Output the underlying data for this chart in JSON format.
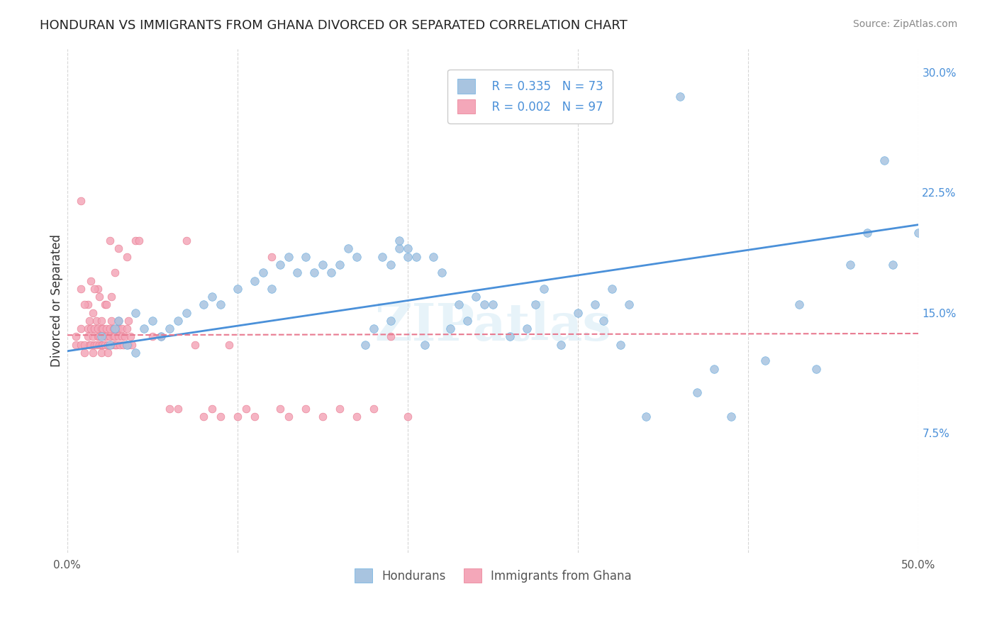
{
  "title": "HONDURAN VS IMMIGRANTS FROM GHANA DIVORCED OR SEPARATED CORRELATION CHART",
  "source": "Source: ZipAtlas.com",
  "ylabel": "Divorced or Separated",
  "xlim": [
    0.0,
    0.5
  ],
  "ylim": [
    0.0,
    0.315
  ],
  "xtick_positions": [
    0.0,
    0.1,
    0.2,
    0.3,
    0.4,
    0.5
  ],
  "xtick_labels": [
    "0.0%",
    "",
    "",
    "",
    "",
    "50.0%"
  ],
  "ytick_labels_right": [
    "7.5%",
    "15.0%",
    "22.5%",
    "30.0%"
  ],
  "ytick_vals_right": [
    0.075,
    0.15,
    0.225,
    0.3
  ],
  "grid_color": "#cccccc",
  "background_color": "#ffffff",
  "watermark": "ZIPatlas",
  "honduran_color": "#a8c4e0",
  "ghana_color": "#f4a7b9",
  "honduran_edge_color": "#6aaee0",
  "ghana_edge_color": "#e87a90",
  "honduran_line_color": "#4a90d9",
  "ghana_line_color": "#e87a90",
  "legend_R1": "R = 0.335",
  "legend_N1": "N = 73",
  "legend_R2": "R = 0.002",
  "legend_N2": "N = 97",
  "legend_text_color": "#4a90d9",
  "legend_label1": "Hondurans",
  "legend_label2": "Immigrants from Ghana",
  "bottom_legend_color": "#555555",
  "title_color": "#222222",
  "source_color": "#888888",
  "ylabel_color": "#333333",
  "right_ytick_color": "#4a90d9",
  "honduran_scatter": [
    [
      0.02,
      0.135
    ],
    [
      0.025,
      0.13
    ],
    [
      0.028,
      0.14
    ],
    [
      0.03,
      0.145
    ],
    [
      0.035,
      0.13
    ],
    [
      0.04,
      0.125
    ],
    [
      0.04,
      0.15
    ],
    [
      0.045,
      0.14
    ],
    [
      0.05,
      0.145
    ],
    [
      0.055,
      0.135
    ],
    [
      0.06,
      0.14
    ],
    [
      0.065,
      0.145
    ],
    [
      0.07,
      0.15
    ],
    [
      0.08,
      0.155
    ],
    [
      0.085,
      0.16
    ],
    [
      0.09,
      0.155
    ],
    [
      0.1,
      0.165
    ],
    [
      0.11,
      0.17
    ],
    [
      0.115,
      0.175
    ],
    [
      0.12,
      0.165
    ],
    [
      0.125,
      0.18
    ],
    [
      0.13,
      0.185
    ],
    [
      0.135,
      0.175
    ],
    [
      0.14,
      0.185
    ],
    [
      0.145,
      0.175
    ],
    [
      0.15,
      0.18
    ],
    [
      0.155,
      0.175
    ],
    [
      0.16,
      0.18
    ],
    [
      0.165,
      0.19
    ],
    [
      0.17,
      0.185
    ],
    [
      0.175,
      0.13
    ],
    [
      0.18,
      0.14
    ],
    [
      0.185,
      0.185
    ],
    [
      0.19,
      0.18
    ],
    [
      0.19,
      0.145
    ],
    [
      0.195,
      0.19
    ],
    [
      0.195,
      0.195
    ],
    [
      0.2,
      0.19
    ],
    [
      0.2,
      0.185
    ],
    [
      0.205,
      0.185
    ],
    [
      0.21,
      0.13
    ],
    [
      0.215,
      0.185
    ],
    [
      0.22,
      0.175
    ],
    [
      0.225,
      0.14
    ],
    [
      0.23,
      0.155
    ],
    [
      0.235,
      0.145
    ],
    [
      0.24,
      0.16
    ],
    [
      0.245,
      0.155
    ],
    [
      0.25,
      0.155
    ],
    [
      0.26,
      0.135
    ],
    [
      0.27,
      0.14
    ],
    [
      0.275,
      0.155
    ],
    [
      0.28,
      0.165
    ],
    [
      0.29,
      0.13
    ],
    [
      0.3,
      0.15
    ],
    [
      0.31,
      0.155
    ],
    [
      0.315,
      0.145
    ],
    [
      0.32,
      0.165
    ],
    [
      0.325,
      0.13
    ],
    [
      0.33,
      0.155
    ],
    [
      0.34,
      0.085
    ],
    [
      0.36,
      0.285
    ],
    [
      0.37,
      0.1
    ],
    [
      0.38,
      0.115
    ],
    [
      0.39,
      0.085
    ],
    [
      0.41,
      0.12
    ],
    [
      0.43,
      0.155
    ],
    [
      0.44,
      0.115
    ],
    [
      0.46,
      0.18
    ],
    [
      0.47,
      0.2
    ],
    [
      0.48,
      0.245
    ],
    [
      0.485,
      0.18
    ],
    [
      0.5,
      0.2
    ]
  ],
  "ghana_scatter": [
    [
      0.005,
      0.135
    ],
    [
      0.005,
      0.13
    ],
    [
      0.008,
      0.14
    ],
    [
      0.008,
      0.13
    ],
    [
      0.01,
      0.125
    ],
    [
      0.01,
      0.13
    ],
    [
      0.012,
      0.14
    ],
    [
      0.012,
      0.135
    ],
    [
      0.013,
      0.13
    ],
    [
      0.013,
      0.145
    ],
    [
      0.014,
      0.13
    ],
    [
      0.014,
      0.14
    ],
    [
      0.015,
      0.125
    ],
    [
      0.015,
      0.135
    ],
    [
      0.016,
      0.13
    ],
    [
      0.016,
      0.14
    ],
    [
      0.017,
      0.13
    ],
    [
      0.017,
      0.145
    ],
    [
      0.018,
      0.135
    ],
    [
      0.018,
      0.14
    ],
    [
      0.019,
      0.13
    ],
    [
      0.019,
      0.135
    ],
    [
      0.02,
      0.125
    ],
    [
      0.02,
      0.13
    ],
    [
      0.02,
      0.14
    ],
    [
      0.02,
      0.145
    ],
    [
      0.021,
      0.13
    ],
    [
      0.021,
      0.14
    ],
    [
      0.022,
      0.135
    ],
    [
      0.022,
      0.13
    ],
    [
      0.023,
      0.14
    ],
    [
      0.023,
      0.135
    ],
    [
      0.024,
      0.125
    ],
    [
      0.024,
      0.13
    ],
    [
      0.025,
      0.135
    ],
    [
      0.025,
      0.14
    ],
    [
      0.026,
      0.13
    ],
    [
      0.026,
      0.145
    ],
    [
      0.027,
      0.135
    ],
    [
      0.027,
      0.14
    ],
    [
      0.028,
      0.13
    ],
    [
      0.028,
      0.135
    ],
    [
      0.029,
      0.14
    ],
    [
      0.029,
      0.13
    ],
    [
      0.03,
      0.135
    ],
    [
      0.03,
      0.14
    ],
    [
      0.03,
      0.145
    ],
    [
      0.031,
      0.13
    ],
    [
      0.032,
      0.135
    ],
    [
      0.032,
      0.14
    ],
    [
      0.033,
      0.13
    ],
    [
      0.034,
      0.135
    ],
    [
      0.035,
      0.14
    ],
    [
      0.036,
      0.13
    ],
    [
      0.036,
      0.145
    ],
    [
      0.037,
      0.135
    ],
    [
      0.038,
      0.13
    ],
    [
      0.04,
      0.195
    ],
    [
      0.042,
      0.195
    ],
    [
      0.05,
      0.135
    ],
    [
      0.055,
      0.135
    ],
    [
      0.06,
      0.09
    ],
    [
      0.065,
      0.09
    ],
    [
      0.07,
      0.195
    ],
    [
      0.075,
      0.13
    ],
    [
      0.08,
      0.085
    ],
    [
      0.085,
      0.09
    ],
    [
      0.09,
      0.085
    ],
    [
      0.095,
      0.13
    ],
    [
      0.1,
      0.085
    ],
    [
      0.105,
      0.09
    ],
    [
      0.11,
      0.085
    ],
    [
      0.12,
      0.185
    ],
    [
      0.125,
      0.09
    ],
    [
      0.13,
      0.085
    ],
    [
      0.14,
      0.09
    ],
    [
      0.15,
      0.085
    ],
    [
      0.16,
      0.09
    ],
    [
      0.17,
      0.085
    ],
    [
      0.18,
      0.09
    ],
    [
      0.19,
      0.135
    ],
    [
      0.2,
      0.085
    ],
    [
      0.025,
      0.195
    ],
    [
      0.03,
      0.19
    ],
    [
      0.008,
      0.22
    ],
    [
      0.035,
      0.185
    ],
    [
      0.028,
      0.175
    ],
    [
      0.018,
      0.165
    ],
    [
      0.022,
      0.155
    ],
    [
      0.014,
      0.17
    ],
    [
      0.016,
      0.165
    ],
    [
      0.019,
      0.16
    ],
    [
      0.023,
      0.155
    ],
    [
      0.026,
      0.16
    ],
    [
      0.015,
      0.15
    ],
    [
      0.012,
      0.155
    ],
    [
      0.01,
      0.155
    ],
    [
      0.008,
      0.165
    ]
  ],
  "honduran_trendline": [
    [
      0.0,
      0.126
    ],
    [
      0.5,
      0.205
    ]
  ],
  "ghana_trendline": [
    [
      0.0,
      0.136
    ],
    [
      0.5,
      0.137
    ]
  ]
}
